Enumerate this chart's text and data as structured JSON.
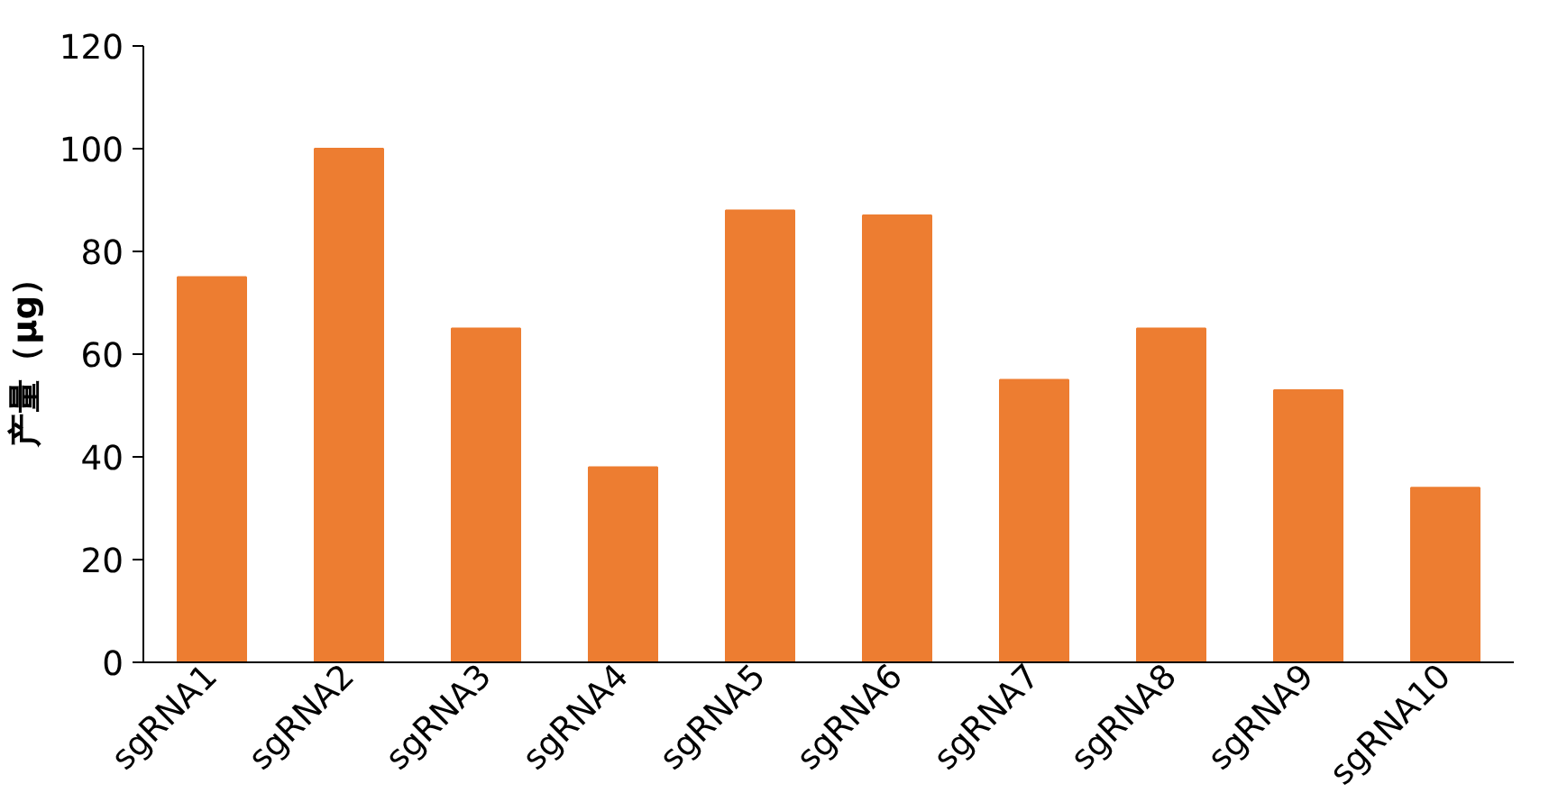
{
  "chart_data": {
    "type": "bar",
    "ylabel": "产量（μg）",
    "categories": [
      "sgRNA1",
      "sgRNA2",
      "sgRNA3",
      "sgRNA4",
      "sgRNA5",
      "sgRNA6",
      "sgRNA7",
      "sgRNA8",
      "sgRNA9",
      "sgRNA10"
    ],
    "values": [
      75,
      100,
      65,
      38,
      88,
      87,
      55,
      65,
      53,
      34
    ],
    "color": "#ed7d31",
    "ylim": [
      0,
      120
    ],
    "yticks": [
      0,
      20,
      40,
      60,
      80,
      100,
      120
    ],
    "grid": false
  }
}
